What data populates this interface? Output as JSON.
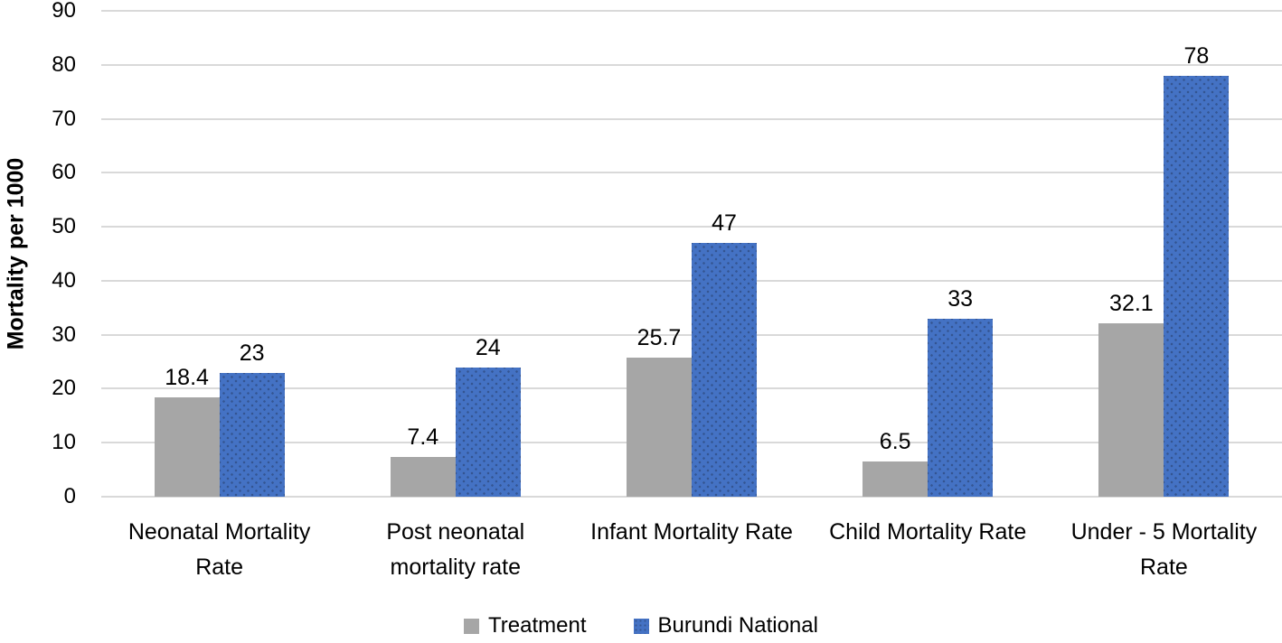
{
  "chart_data": {
    "type": "bar",
    "title": "",
    "xlabel": "",
    "ylabel": "Mortality per 1000",
    "ylim": [
      0,
      90
    ],
    "yticks": [
      0,
      10,
      20,
      30,
      40,
      50,
      60,
      70,
      80,
      90
    ],
    "grid": true,
    "legend_position": "bottom-center",
    "categories": [
      {
        "label": "Neonatal Mortality Rate",
        "lines": [
          "Neonatal Mortality",
          "Rate"
        ]
      },
      {
        "label": "Post neonatal mortality rate",
        "lines": [
          "Post neonatal",
          "mortality rate"
        ]
      },
      {
        "label": "Infant Mortality Rate",
        "lines": [
          "Infant Mortality Rate"
        ]
      },
      {
        "label": "Child Mortality Rate",
        "lines": [
          "Child Mortality Rate"
        ]
      },
      {
        "label": "Under - 5 Mortality Rate",
        "lines": [
          "Under - 5 Mortality",
          "Rate"
        ]
      }
    ],
    "series": [
      {
        "name": "Treatment",
        "color": "#a6a6a6",
        "pattern": "solid",
        "values": [
          18.4,
          7.4,
          25.7,
          6.5,
          32.1
        ],
        "value_labels": [
          "18.4",
          "7.4",
          "25.7",
          "6.5",
          "32.1"
        ]
      },
      {
        "name": "Burundi National",
        "color": "#4472c4",
        "pattern": "dots",
        "values": [
          23,
          24,
          47,
          33,
          78
        ],
        "value_labels": [
          "23",
          "24",
          "47",
          "33",
          "78"
        ]
      }
    ]
  },
  "colors": {
    "background": "#ffffff",
    "gridline": "#d9d9d9",
    "text": "#000000",
    "treatment_gray": "#a6a6a6",
    "national_blue": "#4472c4"
  }
}
